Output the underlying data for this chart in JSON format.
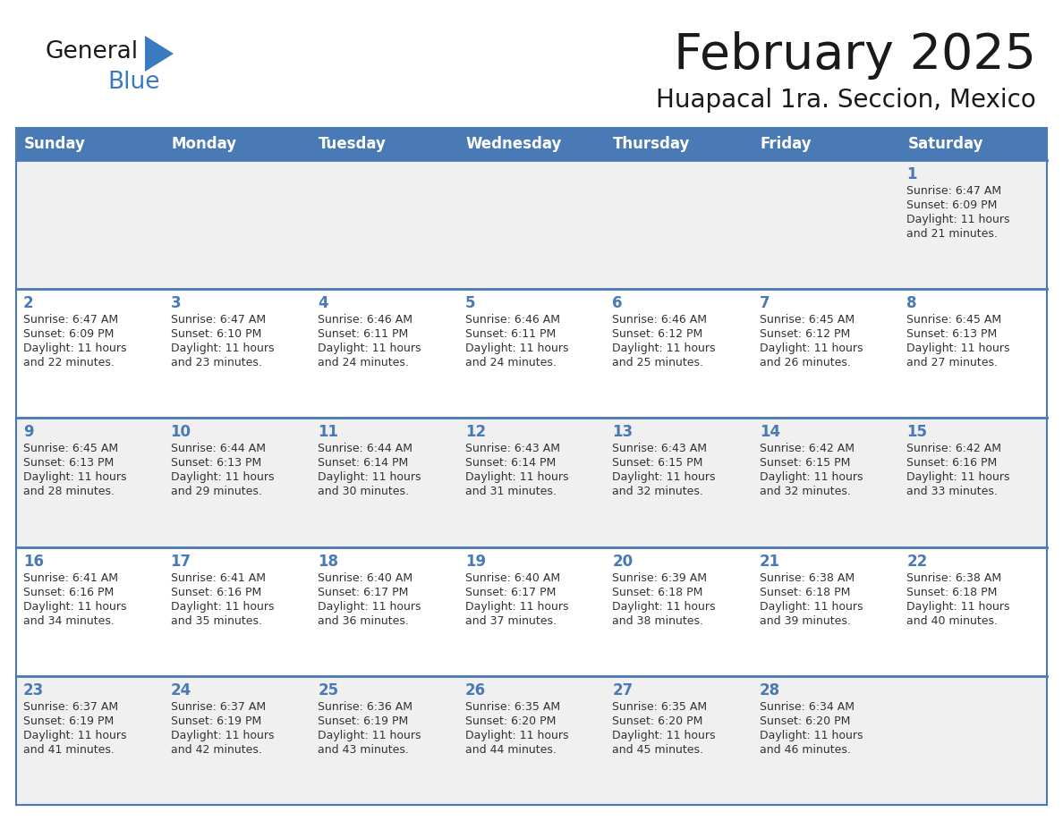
{
  "title": "February 2025",
  "subtitle": "Huapacal 1ra. Seccion, Mexico",
  "header_bg": "#4a7ab5",
  "header_text": "#FFFFFF",
  "row_bg_odd": "#f0f0f0",
  "row_bg_even": "#FFFFFF",
  "border_color": "#4a7ab5",
  "day_headers": [
    "Sunday",
    "Monday",
    "Tuesday",
    "Wednesday",
    "Thursday",
    "Friday",
    "Saturday"
  ],
  "calendar": [
    [
      null,
      null,
      null,
      null,
      null,
      null,
      {
        "day": 1,
        "sunrise": "6:47 AM",
        "sunset": "6:09 PM",
        "daylight": "11 hours and 21 minutes."
      }
    ],
    [
      {
        "day": 2,
        "sunrise": "6:47 AM",
        "sunset": "6:09 PM",
        "daylight": "11 hours and 22 minutes."
      },
      {
        "day": 3,
        "sunrise": "6:47 AM",
        "sunset": "6:10 PM",
        "daylight": "11 hours and 23 minutes."
      },
      {
        "day": 4,
        "sunrise": "6:46 AM",
        "sunset": "6:11 PM",
        "daylight": "11 hours and 24 minutes."
      },
      {
        "day": 5,
        "sunrise": "6:46 AM",
        "sunset": "6:11 PM",
        "daylight": "11 hours and 24 minutes."
      },
      {
        "day": 6,
        "sunrise": "6:46 AM",
        "sunset": "6:12 PM",
        "daylight": "11 hours and 25 minutes."
      },
      {
        "day": 7,
        "sunrise": "6:45 AM",
        "sunset": "6:12 PM",
        "daylight": "11 hours and 26 minutes."
      },
      {
        "day": 8,
        "sunrise": "6:45 AM",
        "sunset": "6:13 PM",
        "daylight": "11 hours and 27 minutes."
      }
    ],
    [
      {
        "day": 9,
        "sunrise": "6:45 AM",
        "sunset": "6:13 PM",
        "daylight": "11 hours and 28 minutes."
      },
      {
        "day": 10,
        "sunrise": "6:44 AM",
        "sunset": "6:13 PM",
        "daylight": "11 hours and 29 minutes."
      },
      {
        "day": 11,
        "sunrise": "6:44 AM",
        "sunset": "6:14 PM",
        "daylight": "11 hours and 30 minutes."
      },
      {
        "day": 12,
        "sunrise": "6:43 AM",
        "sunset": "6:14 PM",
        "daylight": "11 hours and 31 minutes."
      },
      {
        "day": 13,
        "sunrise": "6:43 AM",
        "sunset": "6:15 PM",
        "daylight": "11 hours and 32 minutes."
      },
      {
        "day": 14,
        "sunrise": "6:42 AM",
        "sunset": "6:15 PM",
        "daylight": "11 hours and 32 minutes."
      },
      {
        "day": 15,
        "sunrise": "6:42 AM",
        "sunset": "6:16 PM",
        "daylight": "11 hours and 33 minutes."
      }
    ],
    [
      {
        "day": 16,
        "sunrise": "6:41 AM",
        "sunset": "6:16 PM",
        "daylight": "11 hours and 34 minutes."
      },
      {
        "day": 17,
        "sunrise": "6:41 AM",
        "sunset": "6:16 PM",
        "daylight": "11 hours and 35 minutes."
      },
      {
        "day": 18,
        "sunrise": "6:40 AM",
        "sunset": "6:17 PM",
        "daylight": "11 hours and 36 minutes."
      },
      {
        "day": 19,
        "sunrise": "6:40 AM",
        "sunset": "6:17 PM",
        "daylight": "11 hours and 37 minutes."
      },
      {
        "day": 20,
        "sunrise": "6:39 AM",
        "sunset": "6:18 PM",
        "daylight": "11 hours and 38 minutes."
      },
      {
        "day": 21,
        "sunrise": "6:38 AM",
        "sunset": "6:18 PM",
        "daylight": "11 hours and 39 minutes."
      },
      {
        "day": 22,
        "sunrise": "6:38 AM",
        "sunset": "6:18 PM",
        "daylight": "11 hours and 40 minutes."
      }
    ],
    [
      {
        "day": 23,
        "sunrise": "6:37 AM",
        "sunset": "6:19 PM",
        "daylight": "11 hours and 41 minutes."
      },
      {
        "day": 24,
        "sunrise": "6:37 AM",
        "sunset": "6:19 PM",
        "daylight": "11 hours and 42 minutes."
      },
      {
        "day": 25,
        "sunrise": "6:36 AM",
        "sunset": "6:19 PM",
        "daylight": "11 hours and 43 minutes."
      },
      {
        "day": 26,
        "sunrise": "6:35 AM",
        "sunset": "6:20 PM",
        "daylight": "11 hours and 44 minutes."
      },
      {
        "day": 27,
        "sunrise": "6:35 AM",
        "sunset": "6:20 PM",
        "daylight": "11 hours and 45 minutes."
      },
      {
        "day": 28,
        "sunrise": "6:34 AM",
        "sunset": "6:20 PM",
        "daylight": "11 hours and 46 minutes."
      },
      null
    ]
  ],
  "logo_general_color": "#1a1a1a",
  "logo_blue_color": "#3a7abf",
  "logo_triangle_color": "#3a7abf",
  "title_color": "#1a1a1a",
  "subtitle_color": "#1a1a1a",
  "cell_day_color": "#4a7ab5",
  "cell_text_color": "#333333"
}
